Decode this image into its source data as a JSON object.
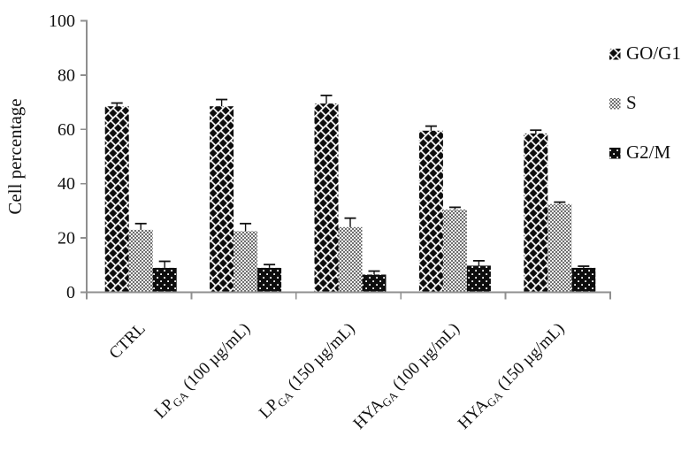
{
  "chart_data": {
    "type": "bar",
    "title": "",
    "xlabel": "",
    "ylabel": "Cell percentage",
    "ylim": [
      0,
      100
    ],
    "ytick_step": 20,
    "grid": false,
    "legend_position": "right",
    "categories": [
      {
        "parts": [
          {
            "text": "CTRL"
          }
        ]
      },
      {
        "parts": [
          {
            "text": "LP"
          },
          {
            "text": "GA",
            "sub": true
          },
          {
            "text": " (100 µg/mL)"
          }
        ]
      },
      {
        "parts": [
          {
            "text": "LP"
          },
          {
            "text": "GA",
            "sub": true
          },
          {
            "text": " (150 µg/mL)"
          }
        ]
      },
      {
        "parts": [
          {
            "text": "HYA"
          },
          {
            "text": "GA",
            "sub": true
          },
          {
            "text": " (100 µg/mL)"
          }
        ]
      },
      {
        "parts": [
          {
            "text": "HYA"
          },
          {
            "text": "GA",
            "sub": true
          },
          {
            "text": " (150 µg/mL)"
          }
        ]
      }
    ],
    "series": [
      {
        "name": "GO/G1",
        "pattern": "dark-diagonal-shingle",
        "values": [
          68.5,
          68.5,
          69.5,
          59.5,
          58.5
        ],
        "errors": [
          1.2,
          2.5,
          3.0,
          1.7,
          1.2
        ]
      },
      {
        "name": "S",
        "pattern": "gray-trellis",
        "values": [
          23,
          22.5,
          24,
          30.5,
          32.5
        ],
        "errors": [
          2.3,
          2.8,
          3.3,
          0.8,
          0.7
        ]
      },
      {
        "name": "G2/M",
        "pattern": "black-white-dots",
        "values": [
          9,
          9,
          6.5,
          9.8,
          9
        ],
        "errors": [
          2.4,
          1.2,
          1.3,
          1.8,
          0.6
        ]
      }
    ],
    "colors": {
      "axis": "#8f8f8f",
      "text": "#111111",
      "bar_dark": "#0d0d0d",
      "bar_gray_dark": "#6f6f6f",
      "bar_gray_light": "#ececec",
      "error_bar": "#111111"
    }
  }
}
